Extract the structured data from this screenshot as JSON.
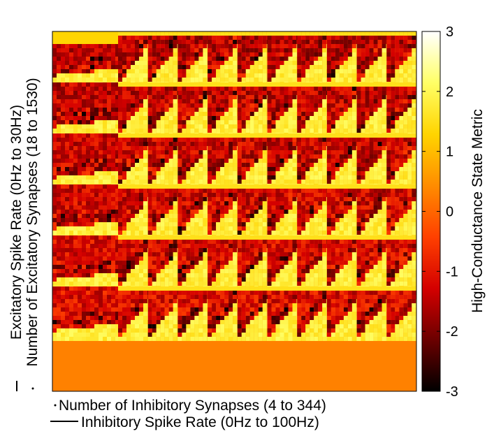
{
  "chart_data": {
    "type": "heatmap",
    "xlabel_lines": [
      "Number of Inhibitory Synapses (4 to 344)",
      "Inhibitory Spike Rate (0Hz to 100Hz)"
    ],
    "ylabel_lines": [
      "Excitatory Spike Rate (0Hz to 30Hz)",
      "Number of Excitatory Synapses (18 to 1530)"
    ],
    "colorbar": {
      "label": "High-Conductance State Metric",
      "clim": [
        -3,
        3
      ],
      "ticks": [
        3,
        2,
        1,
        0,
        -1,
        -2,
        -3
      ],
      "tick_labels": [
        "3",
        "2",
        "1",
        "0",
        "-1",
        "-2",
        "-3"
      ],
      "colormap": "hot",
      "colors": [
        "#000000",
        "#6b0000",
        "#d40000",
        "#ff4000",
        "#ff8c00",
        "#ffd400",
        "#ffff66",
        "#ffffff"
      ]
    },
    "x_ticks": [],
    "y_ticks": [],
    "grid": {
      "outer_columns": 11,
      "outer_rows_with_pattern": 6,
      "background_region": "bottom rows uniform value ≈ 0.3 (orange)"
    },
    "values_summary": {
      "background": 0.3,
      "dark_band": -2.3,
      "mid_band": -1.5,
      "bright_wedge": 1.8,
      "top_left_cap": 1.3
    }
  }
}
